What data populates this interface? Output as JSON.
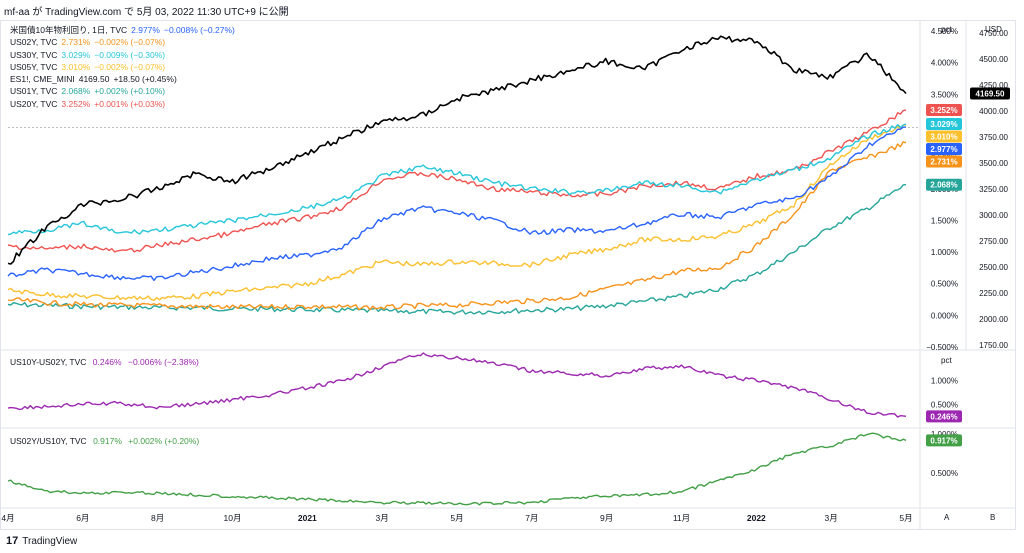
{
  "header": "mf-aa が TradingView.com で 5月 03, 2022 11:30 UTC+9 に公開",
  "footer_logo": "TradingView",
  "colors": {
    "US10Y": "#2962ff",
    "US02Y": "#f7931a",
    "US30Y": "#26c6da",
    "US05Y": "#fbc02d",
    "ES1": "#000000",
    "US01Y": "#26a69a",
    "US20Y": "#ef5350",
    "SPREAD": "#9c27b0",
    "RATIO": "#43a047"
  },
  "legend": [
    {
      "sym": "米国債10年物利回り, 1日, TVC",
      "val": "2.977%",
      "chg": "−0.008% (−0.27%)",
      "color": "#2962ff"
    },
    {
      "sym": "US02Y, TVC",
      "val": "2.731%",
      "chg": "−0.002% (−0.07%)",
      "color": "#f7931a"
    },
    {
      "sym": "US30Y, TVC",
      "val": "3.029%",
      "chg": "−0.009% (−0.30%)",
      "color": "#26c6da"
    },
    {
      "sym": "US05Y, TVC",
      "val": "3.010%",
      "chg": "−0.002% (−0.07%)",
      "color": "#fbc02d"
    },
    {
      "sym": "ES1!, CME_MINI",
      "val": "4169.50",
      "chg": "+18.50 (+0.45%)",
      "color": "#131722"
    },
    {
      "sym": "US01Y, TVC",
      "val": "2.068%",
      "chg": "+0.002% (+0.10%)",
      "color": "#26a69a"
    },
    {
      "sym": "US20Y, TVC",
      "val": "3.252%",
      "chg": "+0.001% (+0.03%)",
      "color": "#ef5350"
    }
  ],
  "legend2": {
    "sym": "US10Y-US02Y, TVC",
    "val": "0.246%",
    "chg": "−0.006% (−2.38%)",
    "color": "#9c27b0"
  },
  "legend3": {
    "sym": "US02Y/US10Y, TVC",
    "val": "0.917%",
    "chg": "+0.002% (+0.20%)",
    "color": "#43a047"
  },
  "axis_buttons": {
    "pct": "pct",
    "usd": "USD",
    "pct2": "pct",
    "a": "A",
    "b": "B"
  },
  "chart_data": {
    "type": "line",
    "x_labels": [
      "4月",
      "6月",
      "8月",
      "10月",
      "2021",
      "3月",
      "5月",
      "7月",
      "9月",
      "11月",
      "2022",
      "3月",
      "5月"
    ],
    "pane1": {
      "left_axis_pct": [
        "4.500%",
        "4.000%",
        "3.500%",
        "3.000%",
        "2.500%",
        "2.000%",
        "1.500%",
        "1.000%",
        "0.500%",
        "0.000%",
        "−0.500%"
      ],
      "right_axis_usd": [
        "4750.00",
        "4500.00",
        "4250.00",
        "4000.00",
        "3750.00",
        "3500.00",
        "3250.00",
        "3000.00",
        "2750.00",
        "2500.00",
        "2250.00",
        "2000.00",
        "1750.00"
      ],
      "price_range_pct": [
        -0.55,
        4.55
      ],
      "price_range_usd": [
        1700,
        4800
      ],
      "series": [
        {
          "name": "US01Y",
          "color": "#26a69a",
          "last": "2.068%",
          "values": [
            0.17,
            0.16,
            0.14,
            0.13,
            0.12,
            0.12,
            0.1,
            0.1,
            0.09,
            0.08,
            0.07,
            0.06,
            0.05,
            0.06,
            0.08,
            0.1,
            0.15,
            0.22,
            0.3,
            0.42,
            0.65,
            1.0,
            1.4,
            1.7,
            2.07
          ]
        },
        {
          "name": "US02Y",
          "color": "#f7931a",
          "last": "2.731%",
          "values": [
            0.25,
            0.2,
            0.17,
            0.16,
            0.15,
            0.14,
            0.13,
            0.13,
            0.14,
            0.13,
            0.12,
            0.15,
            0.16,
            0.2,
            0.23,
            0.28,
            0.42,
            0.55,
            0.7,
            0.75,
            1.1,
            1.6,
            2.3,
            2.5,
            2.73
          ]
        },
        {
          "name": "US05Y",
          "color": "#fbc02d",
          "last": "3.010%",
          "values": [
            0.4,
            0.33,
            0.3,
            0.28,
            0.27,
            0.3,
            0.38,
            0.43,
            0.5,
            0.65,
            0.85,
            0.8,
            0.85,
            0.82,
            0.8,
            0.95,
            1.05,
            1.2,
            1.2,
            1.25,
            1.45,
            1.75,
            2.4,
            2.8,
            3.01
          ]
        },
        {
          "name": "US10Y",
          "color": "#2962ff",
          "last": "2.977%",
          "values": [
            0.62,
            0.72,
            0.66,
            0.6,
            0.58,
            0.68,
            0.78,
            0.9,
            0.95,
            1.1,
            1.52,
            1.7,
            1.62,
            1.5,
            1.3,
            1.35,
            1.33,
            1.45,
            1.6,
            1.55,
            1.75,
            1.85,
            2.2,
            2.7,
            2.98
          ]
        },
        {
          "name": "US20Y",
          "color": "#ef5350",
          "last": "3.252%",
          "values": [
            1.1,
            1.05,
            1.1,
            1.0,
            1.1,
            1.2,
            1.3,
            1.45,
            1.55,
            1.72,
            2.15,
            2.25,
            2.15,
            2.0,
            1.95,
            1.9,
            1.92,
            2.05,
            2.1,
            2.0,
            2.2,
            2.3,
            2.6,
            2.9,
            3.25
          ]
        },
        {
          "name": "US30Y",
          "color": "#26c6da",
          "last": "3.029%",
          "values": [
            1.3,
            1.35,
            1.45,
            1.3,
            1.35,
            1.42,
            1.5,
            1.6,
            1.7,
            1.85,
            2.2,
            2.35,
            2.25,
            2.1,
            2.0,
            1.95,
            1.97,
            2.1,
            2.05,
            1.95,
            2.15,
            2.3,
            2.5,
            2.85,
            3.03
          ]
        }
      ],
      "es1": {
        "name": "ES1!",
        "color": "#000000",
        "last": "4169.50",
        "values": [
          2530,
          2870,
          3100,
          3150,
          3250,
          3400,
          3320,
          3450,
          3600,
          3750,
          3900,
          3950,
          4120,
          4200,
          4300,
          4390,
          4480,
          4400,
          4600,
          4700,
          4680,
          4400,
          4330,
          4550,
          4169.5
        ]
      }
    },
    "pane2": {
      "name": "US10Y-US02Y",
      "color": "#9c27b0",
      "last": "0.246%",
      "axis": [
        "1.000%",
        "0.500%"
      ],
      "range": [
        0.0,
        1.6
      ],
      "values": [
        0.42,
        0.45,
        0.5,
        0.52,
        0.44,
        0.5,
        0.6,
        0.7,
        0.84,
        1.0,
        1.3,
        1.55,
        1.48,
        1.35,
        1.2,
        1.15,
        1.1,
        1.25,
        1.3,
        1.1,
        1.0,
        0.85,
        0.6,
        0.32,
        0.246
      ]
    },
    "pane3": {
      "name": "US02Y/US10Y",
      "color": "#43a047",
      "last": "0.917%",
      "axis": [
        "1.000%",
        "0.500%"
      ],
      "range": [
        0.05,
        1.05
      ],
      "values": [
        0.4,
        0.27,
        0.24,
        0.25,
        0.24,
        0.22,
        0.2,
        0.18,
        0.16,
        0.14,
        0.12,
        0.12,
        0.1,
        0.11,
        0.12,
        0.18,
        0.2,
        0.22,
        0.26,
        0.4,
        0.55,
        0.75,
        0.85,
        1.0,
        0.917
      ]
    }
  }
}
